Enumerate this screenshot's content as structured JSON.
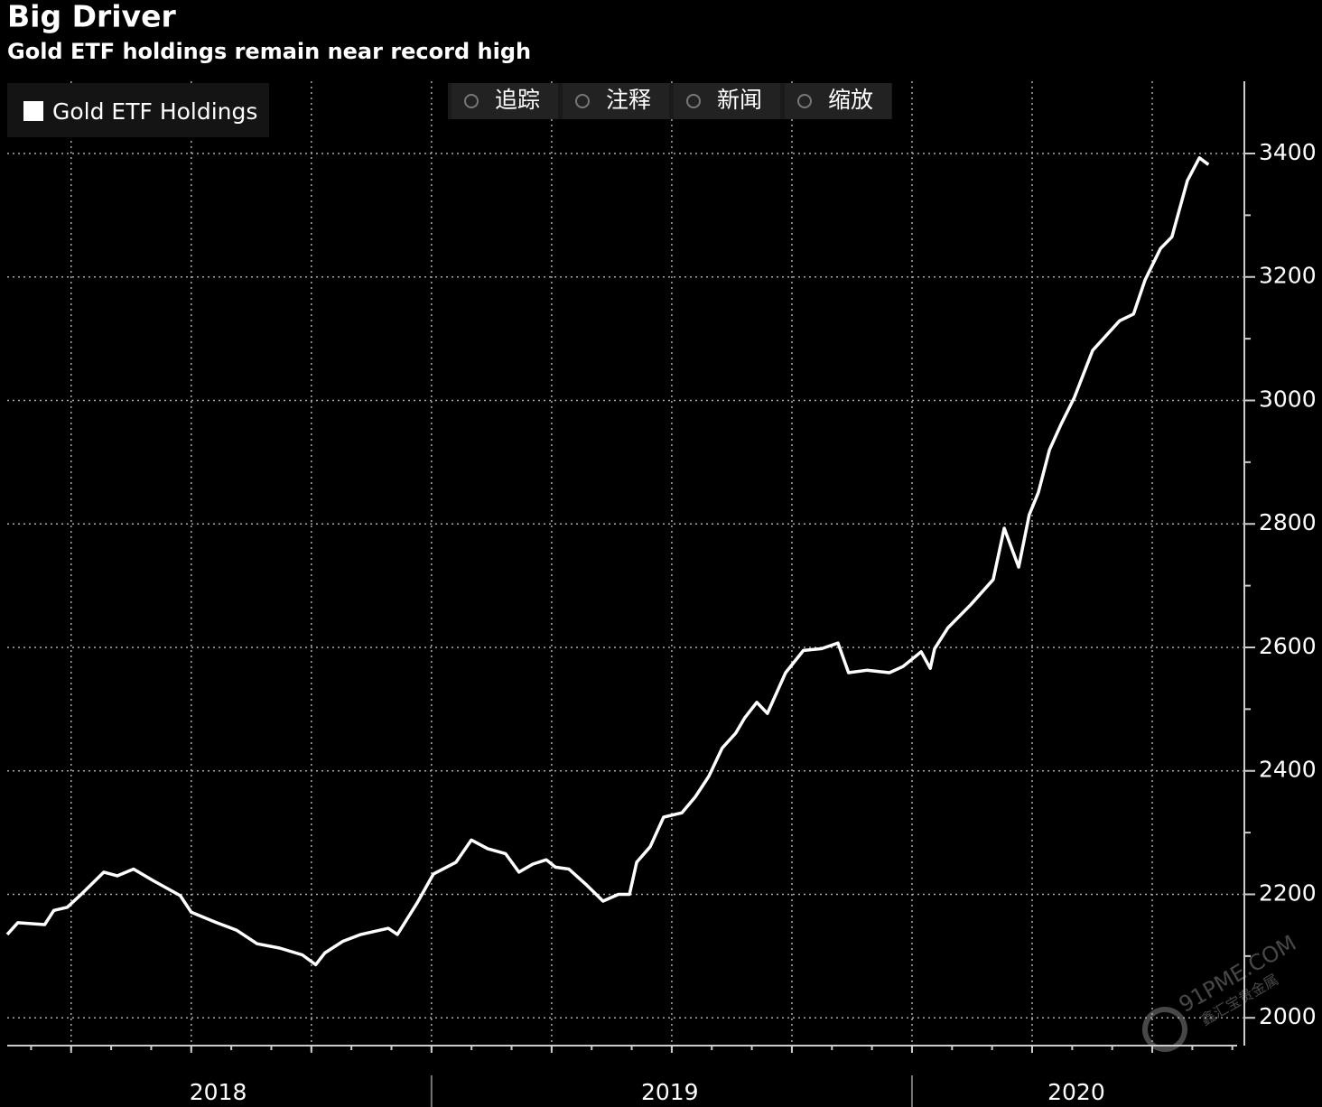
{
  "chart_data": {
    "type": "line",
    "title": "Big Driver",
    "subtitle": "Gold ETF holdings remain near record high",
    "x": [
      2018.117,
      2018.139,
      2018.195,
      2018.214,
      2018.242,
      2018.271,
      2018.318,
      2018.346,
      2018.38,
      2018.421,
      2018.477,
      2018.5,
      2018.553,
      2018.594,
      2018.637,
      2018.684,
      2018.731,
      2018.759,
      2018.778,
      2018.816,
      2018.853,
      2018.91,
      2018.929,
      2018.97,
      2019.004,
      2019.051,
      2019.083,
      2019.117,
      2019.154,
      2019.182,
      2019.211,
      2019.239,
      2019.258,
      2019.286,
      2019.323,
      2019.357,
      2019.389,
      2019.412,
      2019.427,
      2019.455,
      2019.483,
      2019.521,
      2019.549,
      2019.577,
      2019.605,
      2019.633,
      2019.652,
      2019.677,
      2019.699,
      2019.737,
      2019.774,
      2019.812,
      2019.846,
      2019.868,
      2019.906,
      2019.953,
      2019.981,
      2020.019,
      2020.038,
      2020.047,
      2020.075,
      2020.122,
      2020.169,
      2020.192,
      2020.222,
      2020.244,
      2020.263,
      2020.286,
      2020.31,
      2020.338,
      2020.376,
      2020.432,
      2020.461,
      2020.485,
      2020.517,
      2020.541,
      2020.573,
      2020.598,
      2020.617
    ],
    "series": [
      {
        "name": "Gold ETF Holdings",
        "color": "#ffffff",
        "values": [
          2135,
          2154,
          2151,
          2174,
          2179,
          2200,
          2236,
          2230,
          2241,
          2222,
          2198,
          2171,
          2154,
          2142,
          2120,
          2113,
          2102,
          2086,
          2105,
          2124,
          2135,
          2145,
          2135,
          2186,
          2233,
          2252,
          2288,
          2274,
          2266,
          2236,
          2249,
          2256,
          2244,
          2241,
          2215,
          2189,
          2200,
          2200,
          2252,
          2277,
          2325,
          2332,
          2358,
          2391,
          2437,
          2461,
          2486,
          2511,
          2493,
          2559,
          2595,
          2598,
          2607,
          2559,
          2563,
          2559,
          2569,
          2593,
          2566,
          2598,
          2632,
          2669,
          2710,
          2793,
          2730,
          2815,
          2851,
          2920,
          2961,
          3005,
          3081,
          3129,
          3140,
          3195,
          3246,
          3265,
          3356,
          3393,
          3382
        ]
      }
    ],
    "xlim": [
      2018.117,
      2020.686
    ],
    "xticks": [
      {
        "value": 2018.556,
        "label": "2018"
      },
      {
        "value": 2019.496,
        "label": "2019"
      },
      {
        "value": 2020.342,
        "label": "2020"
      }
    ],
    "ylim": [
      1955,
      3517
    ],
    "yticks": [
      2000,
      2200,
      2400,
      2600,
      2800,
      3000,
      3200,
      3400
    ],
    "grid": true,
    "legend": "top-left"
  },
  "toolbar": [
    "追踪",
    "注释",
    "新闻",
    "缩放"
  ],
  "watermark": [
    "91PME.COM",
    "鑫汇宝贵金属"
  ]
}
